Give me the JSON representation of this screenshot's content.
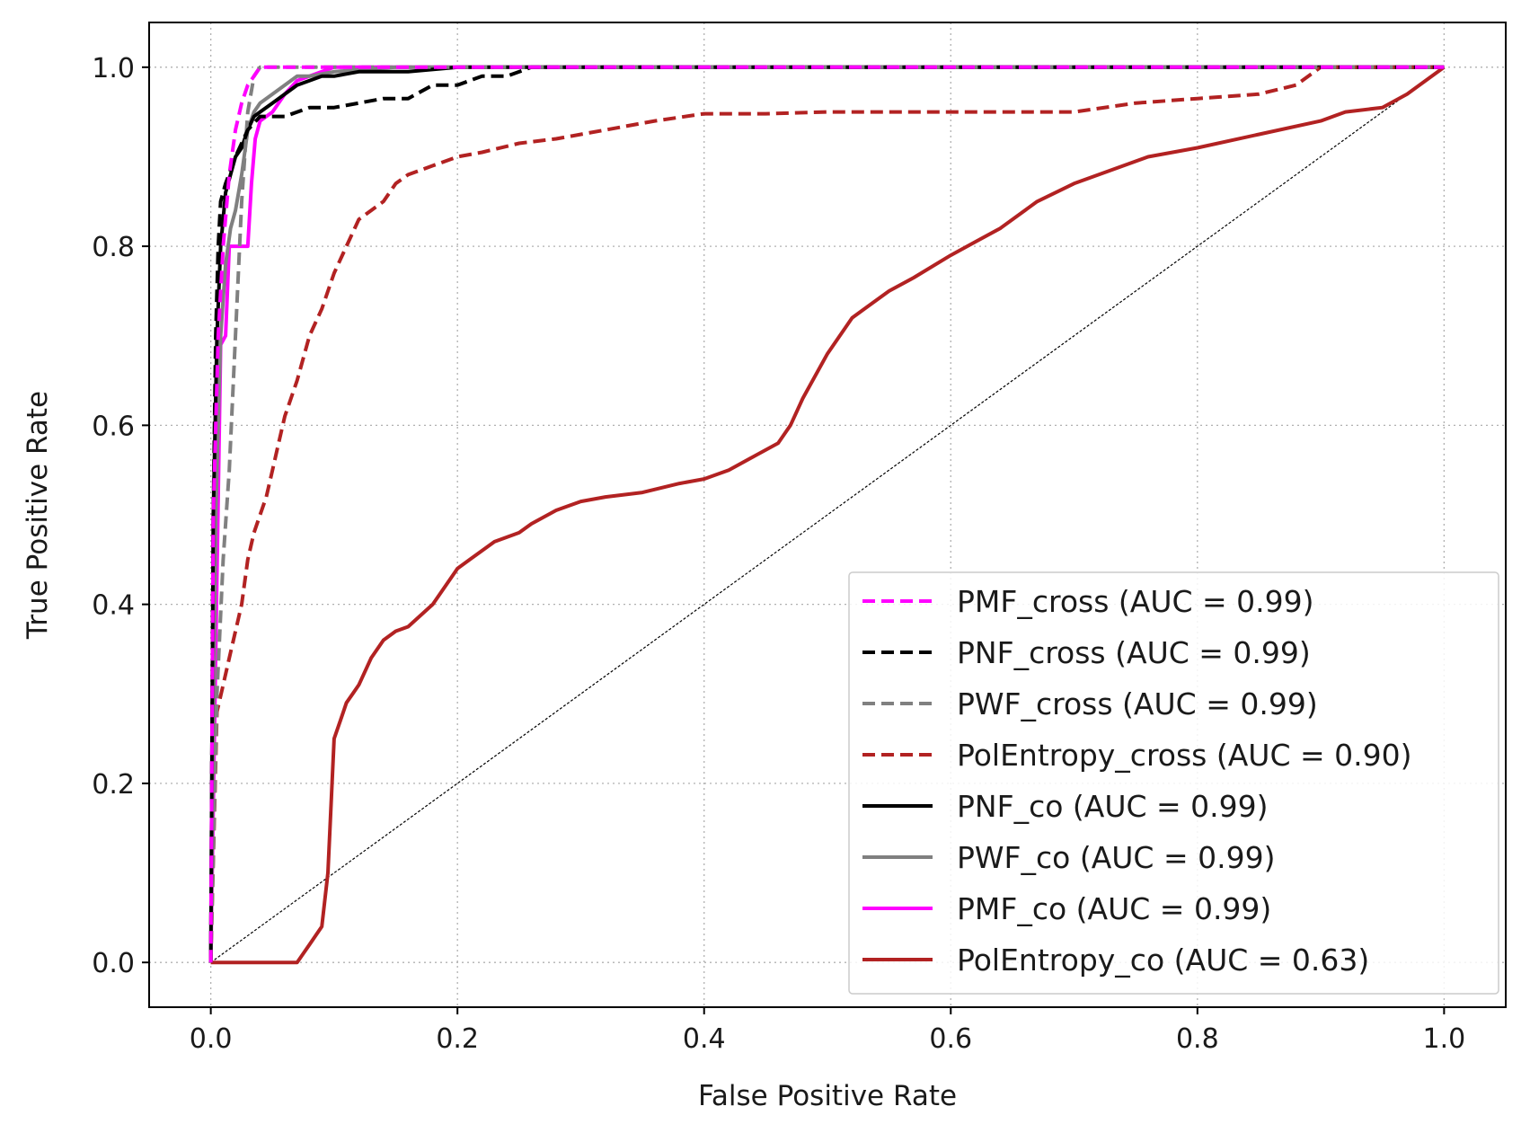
{
  "chart_data": {
    "type": "line",
    "title": "",
    "xlabel": "False Positive Rate",
    "ylabel": "True Positive Rate",
    "xlim": [
      -0.05,
      1.05
    ],
    "ylim": [
      -0.05,
      1.05
    ],
    "xticks": [
      0.0,
      0.2,
      0.4,
      0.6,
      0.8,
      1.0
    ],
    "yticks": [
      0.0,
      0.2,
      0.4,
      0.6,
      0.8,
      1.0
    ],
    "xtick_labels": [
      "0.0",
      "0.2",
      "0.4",
      "0.6",
      "0.8",
      "1.0"
    ],
    "ytick_labels": [
      "0.0",
      "0.2",
      "0.4",
      "0.6",
      "0.8",
      "1.0"
    ],
    "grid": true,
    "legend_position": "lower-right",
    "diagonal": {
      "x": [
        0,
        1
      ],
      "y": [
        0,
        1
      ],
      "color": "#000000"
    },
    "series": [
      {
        "name": "PMF_cross (AUC = 0.99)",
        "color": "#ff00ff",
        "style": "dashed",
        "x": [
          0,
          0.002,
          0.006,
          0.01,
          0.015,
          0.02,
          0.025,
          0.03,
          0.035,
          0.04,
          0.05,
          0.07,
          0.1,
          1.0
        ],
        "y": [
          0,
          0.5,
          0.7,
          0.8,
          0.88,
          0.93,
          0.96,
          0.98,
          0.99,
          1.0,
          1.0,
          1.0,
          1.0,
          1.0
        ]
      },
      {
        "name": "PNF_cross (AUC = 0.99)",
        "color": "#000000",
        "style": "dashed",
        "x": [
          0,
          0.002,
          0.004,
          0.006,
          0.008,
          0.012,
          0.02,
          0.03,
          0.04,
          0.06,
          0.08,
          0.1,
          0.12,
          0.14,
          0.16,
          0.18,
          0.2,
          0.22,
          0.24,
          0.26,
          0.28,
          0.3,
          1.0
        ],
        "y": [
          0,
          0.5,
          0.7,
          0.8,
          0.85,
          0.87,
          0.9,
          0.93,
          0.945,
          0.945,
          0.955,
          0.955,
          0.96,
          0.965,
          0.965,
          0.98,
          0.98,
          0.99,
          0.99,
          1.0,
          1.0,
          1.0,
          1.0
        ]
      },
      {
        "name": "PWF_cross (AUC = 0.99)",
        "color": "#808080",
        "style": "dashed",
        "x": [
          0,
          0.005,
          0.01,
          0.015,
          0.02,
          0.025,
          0.03,
          0.035,
          0.04,
          0.05,
          0.06,
          0.08,
          1.0
        ],
        "y": [
          0,
          0.3,
          0.45,
          0.55,
          0.7,
          0.85,
          0.95,
          0.99,
          1.0,
          1.0,
          1.0,
          1.0,
          1.0
        ]
      },
      {
        "name": "PolEntropy_cross (AUC = 0.90)",
        "color": "#b22222",
        "style": "dashed",
        "x": [
          0,
          0.005,
          0.01,
          0.015,
          0.02,
          0.025,
          0.03,
          0.035,
          0.04,
          0.045,
          0.05,
          0.055,
          0.06,
          0.07,
          0.08,
          0.09,
          0.1,
          0.11,
          0.12,
          0.13,
          0.14,
          0.15,
          0.16,
          0.17,
          0.18,
          0.2,
          0.22,
          0.25,
          0.28,
          0.32,
          0.36,
          0.4,
          0.45,
          0.5,
          0.55,
          0.6,
          0.65,
          0.7,
          0.75,
          0.8,
          0.85,
          0.88,
          0.9,
          1.0
        ],
        "y": [
          0,
          0.28,
          0.31,
          0.34,
          0.37,
          0.4,
          0.45,
          0.48,
          0.5,
          0.52,
          0.55,
          0.58,
          0.61,
          0.65,
          0.7,
          0.73,
          0.77,
          0.8,
          0.83,
          0.84,
          0.85,
          0.87,
          0.88,
          0.885,
          0.89,
          0.9,
          0.905,
          0.915,
          0.92,
          0.93,
          0.94,
          0.948,
          0.948,
          0.95,
          0.95,
          0.95,
          0.95,
          0.95,
          0.96,
          0.965,
          0.97,
          0.98,
          1.0,
          1.0
        ]
      },
      {
        "name": "PNF_co (AUC = 0.99)",
        "color": "#000000",
        "style": "solid",
        "x": [
          0,
          0.002,
          0.005,
          0.008,
          0.012,
          0.016,
          0.02,
          0.025,
          0.03,
          0.035,
          0.04,
          0.05,
          0.06,
          0.07,
          0.08,
          0.09,
          0.1,
          0.12,
          0.14,
          0.16,
          0.2,
          0.25,
          0.3,
          1.0
        ],
        "y": [
          0,
          0.5,
          0.7,
          0.8,
          0.86,
          0.88,
          0.9,
          0.91,
          0.93,
          0.945,
          0.95,
          0.96,
          0.97,
          0.98,
          0.985,
          0.99,
          0.99,
          0.995,
          0.995,
          0.995,
          1.0,
          1.0,
          1.0,
          1.0
        ]
      },
      {
        "name": "PWF_co (AUC = 0.99)",
        "color": "#808080",
        "style": "solid",
        "x": [
          0,
          0.004,
          0.008,
          0.012,
          0.016,
          0.02,
          0.025,
          0.03,
          0.035,
          0.04,
          0.05,
          0.06,
          0.07,
          0.08,
          0.1,
          0.15,
          0.2,
          0.3,
          1.0
        ],
        "y": [
          0,
          0.5,
          0.7,
          0.78,
          0.82,
          0.84,
          0.88,
          0.93,
          0.95,
          0.96,
          0.97,
          0.98,
          0.99,
          0.99,
          0.995,
          1.0,
          1.0,
          1.0,
          1.0
        ]
      },
      {
        "name": "PMF_co (AUC = 0.99)",
        "color": "#ff00ff",
        "style": "solid",
        "x": [
          0,
          0.008,
          0.012,
          0.015,
          0.02,
          0.025,
          0.03,
          0.033,
          0.036,
          0.04,
          0.05,
          0.06,
          0.07,
          0.08,
          0.1,
          1.0
        ],
        "y": [
          0,
          0.69,
          0.7,
          0.8,
          0.8,
          0.8,
          0.8,
          0.87,
          0.92,
          0.94,
          0.95,
          0.97,
          0.985,
          0.99,
          1.0,
          1.0
        ]
      },
      {
        "name": "PolEntropy_co (AUC = 0.63)",
        "color": "#b22222",
        "style": "solid",
        "x": [
          0,
          0.04,
          0.07,
          0.075,
          0.08,
          0.09,
          0.095,
          0.1,
          0.105,
          0.11,
          0.115,
          0.12,
          0.13,
          0.14,
          0.15,
          0.16,
          0.18,
          0.2,
          0.21,
          0.23,
          0.25,
          0.26,
          0.28,
          0.3,
          0.32,
          0.35,
          0.38,
          0.4,
          0.42,
          0.44,
          0.46,
          0.47,
          0.48,
          0.5,
          0.52,
          0.53,
          0.55,
          0.57,
          0.6,
          0.62,
          0.64,
          0.67,
          0.7,
          0.73,
          0.76,
          0.8,
          0.85,
          0.9,
          0.92,
          0.95,
          0.97,
          1.0
        ],
        "y": [
          0,
          0,
          0.0,
          0.01,
          0.02,
          0.04,
          0.1,
          0.25,
          0.27,
          0.29,
          0.3,
          0.31,
          0.34,
          0.36,
          0.37,
          0.375,
          0.4,
          0.44,
          0.45,
          0.47,
          0.48,
          0.49,
          0.505,
          0.515,
          0.52,
          0.525,
          0.535,
          0.54,
          0.55,
          0.565,
          0.58,
          0.6,
          0.63,
          0.68,
          0.72,
          0.73,
          0.75,
          0.765,
          0.79,
          0.805,
          0.82,
          0.85,
          0.87,
          0.885,
          0.9,
          0.91,
          0.925,
          0.94,
          0.95,
          0.955,
          0.97,
          1.0
        ]
      }
    ]
  }
}
